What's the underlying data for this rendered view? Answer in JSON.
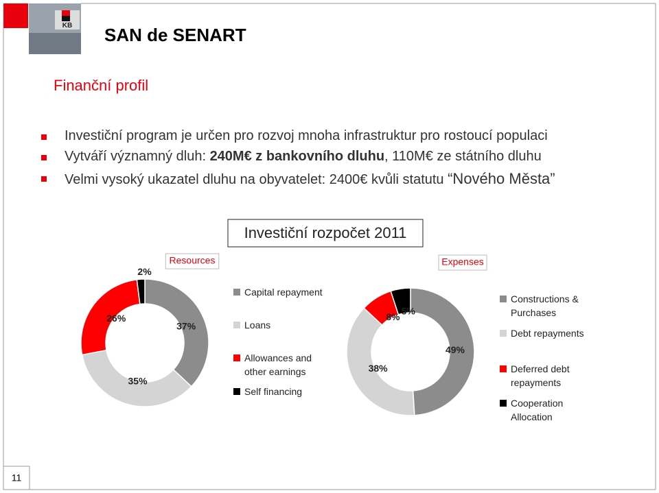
{
  "header": {
    "title": "SAN de SENART",
    "subtitle": "Finanční profil"
  },
  "bullets": [
    [
      {
        "text": "Investiční program je určen pro rozvoj mnoha infrastruktur pro rostoucí populaci"
      }
    ],
    [
      {
        "text": "Vytváří významný dluh: "
      },
      {
        "text": "240M€ z bankovního dluhu",
        "bold": true
      },
      {
        "text": ", 110M€ ze státního dluhu"
      }
    ],
    [
      {
        "text": "Velmi vysoký ukazatel dluhu na obyvatelet: 2400€ kvůli statutu "
      },
      {
        "text": "“Nového Města”",
        "large": true
      }
    ]
  ],
  "section_title": "Investiční rozpočet 2011",
  "page_number": "11",
  "chart_data": [
    {
      "type": "donut",
      "title": "Resources",
      "categories": [
        "Capital repayment",
        "Loans",
        "Allowances and other earnings",
        "Self financing"
      ],
      "values": [
        37,
        35,
        26,
        2
      ],
      "value_labels": [
        "37%",
        "35%",
        "26%",
        "2%"
      ],
      "colors": [
        "#8c8c8c",
        "#d4d4d4",
        "#ff0000",
        "#000000"
      ]
    },
    {
      "type": "donut",
      "title": "Expenses",
      "categories": [
        "Constructions & Purchases",
        "Debt repayments",
        "Deferred debt repayments",
        "Cooperation Allocation"
      ],
      "values": [
        49,
        38,
        8,
        5
      ],
      "value_labels": [
        "49%",
        "38%",
        "8%",
        "5%"
      ],
      "colors": [
        "#8c8c8c",
        "#d4d4d4",
        "#ff0000",
        "#000000"
      ]
    }
  ]
}
